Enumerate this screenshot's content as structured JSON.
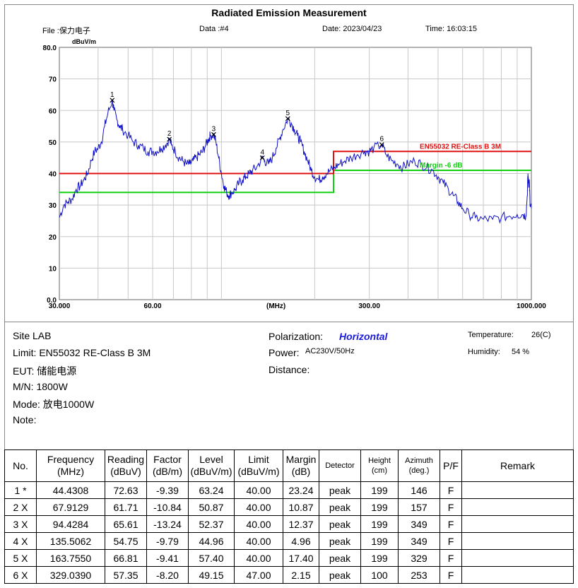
{
  "header": {
    "title": "Radiated Emission Measurement",
    "file": "File :保力电子",
    "data": "Data :#4",
    "date": "Date: 2023/04/23",
    "time": "Time: 16:03:15"
  },
  "chart_data": {
    "type": "line",
    "ylabel": "dBuV/m",
    "xunit": "(MHz)",
    "xscale": "log",
    "xlim": [
      30,
      1000
    ],
    "ylim": [
      0,
      80
    ],
    "xtick_labels": [
      {
        "value": 30,
        "label": "30.000"
      },
      {
        "value": 60,
        "label": "60.00"
      },
      {
        "value": 150,
        "label": "(MHz)"
      },
      {
        "value": 300,
        "label": "300.00"
      },
      {
        "value": 1000,
        "label": "1000.000"
      }
    ],
    "ytick_labels": [
      {
        "value": 80,
        "label": "80.0"
      },
      {
        "value": 70,
        "label": "70"
      },
      {
        "value": 60,
        "label": "60"
      },
      {
        "value": 50,
        "label": "50"
      },
      {
        "value": 40,
        "label": "40"
      },
      {
        "value": 30,
        "label": "30"
      },
      {
        "value": 20,
        "label": "20"
      },
      {
        "value": 10,
        "label": "10"
      },
      {
        "value": 0,
        "label": "0.0"
      }
    ],
    "limit_line": {
      "label": "EN55032 RE-Class B 3M",
      "color": "#e01010",
      "points": [
        [
          30,
          40
        ],
        [
          230,
          40
        ],
        [
          230,
          47
        ],
        [
          1000,
          47
        ]
      ]
    },
    "margin_line": {
      "label": "Margin -6 dB",
      "color": "#10d010",
      "points": [
        [
          30,
          34
        ],
        [
          230,
          34
        ],
        [
          230,
          41
        ],
        [
          1000,
          41
        ]
      ]
    },
    "trace": {
      "color": "#1010c8",
      "points": [
        [
          30,
          26
        ],
        [
          31,
          30
        ],
        [
          32,
          31
        ],
        [
          33,
          32
        ],
        [
          34,
          35
        ],
        [
          35,
          36
        ],
        [
          36,
          38
        ],
        [
          37,
          40
        ],
        [
          38,
          44
        ],
        [
          39,
          47
        ],
        [
          40,
          48
        ],
        [
          41,
          50
        ],
        [
          42,
          55
        ],
        [
          43,
          59
        ],
        [
          44.43,
          63.24
        ],
        [
          45,
          60
        ],
        [
          46,
          57
        ],
        [
          47,
          55
        ],
        [
          48,
          54
        ],
        [
          50,
          52
        ],
        [
          52,
          50
        ],
        [
          54,
          49
        ],
        [
          56,
          48
        ],
        [
          58,
          47
        ],
        [
          60,
          47
        ],
        [
          62,
          47
        ],
        [
          64,
          48
        ],
        [
          66,
          49
        ],
        [
          67.91,
          50.87
        ],
        [
          69,
          49
        ],
        [
          71,
          47
        ],
        [
          73,
          45
        ],
        [
          75,
          44
        ],
        [
          77,
          43
        ],
        [
          79,
          43
        ],
        [
          81,
          44
        ],
        [
          83,
          45
        ],
        [
          85,
          46
        ],
        [
          87,
          47
        ],
        [
          89,
          49
        ],
        [
          91,
          51
        ],
        [
          92,
          52
        ],
        [
          94.43,
          52.37
        ],
        [
          96,
          50
        ],
        [
          98,
          45
        ],
        [
          100,
          40
        ],
        [
          102,
          36
        ],
        [
          104,
          34
        ],
        [
          106,
          33
        ],
        [
          108,
          34
        ],
        [
          111,
          35
        ],
        [
          114,
          37
        ],
        [
          117,
          38
        ],
        [
          120,
          39
        ],
        [
          123,
          40
        ],
        [
          126,
          41
        ],
        [
          130,
          42
        ],
        [
          135.51,
          44.96
        ],
        [
          138,
          44
        ],
        [
          142,
          43
        ],
        [
          146,
          45
        ],
        [
          150,
          48
        ],
        [
          154,
          51
        ],
        [
          158,
          54
        ],
        [
          163.76,
          57.4
        ],
        [
          168,
          56
        ],
        [
          172,
          54
        ],
        [
          176,
          52
        ],
        [
          180,
          50
        ],
        [
          185,
          47
        ],
        [
          190,
          44
        ],
        [
          195,
          41
        ],
        [
          200,
          39
        ],
        [
          206,
          38
        ],
        [
          212,
          39
        ],
        [
          218,
          40
        ],
        [
          225,
          41
        ],
        [
          232,
          42
        ],
        [
          240,
          43
        ],
        [
          250,
          44
        ],
        [
          262,
          45
        ],
        [
          275,
          46
        ],
        [
          290,
          47
        ],
        [
          300,
          47
        ],
        [
          310,
          48
        ],
        [
          329.04,
          49.15
        ],
        [
          340,
          46
        ],
        [
          355,
          44
        ],
        [
          370,
          43
        ],
        [
          385,
          42
        ],
        [
          400,
          43
        ],
        [
          420,
          44
        ],
        [
          440,
          43
        ],
        [
          460,
          42
        ],
        [
          480,
          41
        ],
        [
          500,
          39
        ],
        [
          520,
          37
        ],
        [
          540,
          35
        ],
        [
          560,
          33
        ],
        [
          580,
          31
        ],
        [
          600,
          29
        ],
        [
          630,
          27
        ],
        [
          660,
          26
        ],
        [
          700,
          25.5
        ],
        [
          750,
          25.5
        ],
        [
          800,
          26
        ],
        [
          850,
          26.5
        ],
        [
          900,
          27
        ],
        [
          940,
          27
        ],
        [
          960,
          26.5
        ],
        [
          970,
          33
        ],
        [
          975,
          40
        ],
        [
          980,
          36
        ],
        [
          985,
          38
        ],
        [
          990,
          30
        ],
        [
          1000,
          29
        ]
      ]
    },
    "markers": [
      {
        "label": "1",
        "x": 44.4308,
        "y": 63.24
      },
      {
        "label": "2",
        "x": 67.9129,
        "y": 50.87
      },
      {
        "label": "3",
        "x": 94.4284,
        "y": 52.37
      },
      {
        "label": "4",
        "x": 135.5062,
        "y": 44.96
      },
      {
        "label": "5",
        "x": 163.755,
        "y": 57.4
      },
      {
        "label": "6",
        "x": 329.039,
        "y": 49.15
      }
    ]
  },
  "info": {
    "site": "Site  LAB",
    "limit": "Limit:  EN55032 RE-Class B 3M",
    "eut": "EUT:  储能电源",
    "mn": "M/N:  1800W",
    "mode": "Mode:  放电1000W",
    "note": "Note:",
    "polarization_label": "Polarization:",
    "polarization_value": "Horizontal",
    "power_label": "Power:",
    "power_value": "AC230V/50Hz",
    "distance_label": "Distance:",
    "temperature_label": "Temperature:",
    "temperature_value": "26(C)",
    "humidity_label": "Humidity:",
    "humidity_value": "54 %"
  },
  "table": {
    "headers": [
      [
        "No.",
        ""
      ],
      [
        "Frequency",
        "(MHz)"
      ],
      [
        "Reading",
        "(dBuV)"
      ],
      [
        "Factor",
        "(dB/m)"
      ],
      [
        "Level",
        "(dBuV/m)"
      ],
      [
        "Limit",
        "(dBuV/m)"
      ],
      [
        "Margin",
        "(dB)"
      ],
      [
        "Detector",
        ""
      ],
      [
        "Height",
        "(cm)"
      ],
      [
        "Azimuth",
        "(deg.)"
      ],
      [
        "P/F",
        ""
      ],
      [
        "Remark",
        ""
      ]
    ],
    "rows": [
      [
        "1 *",
        "44.4308",
        "72.63",
        "-9.39",
        "63.24",
        "40.00",
        "23.24",
        "peak",
        "199",
        "146",
        "F",
        ""
      ],
      [
        "2 X",
        "67.9129",
        "61.71",
        "-10.84",
        "50.87",
        "40.00",
        "10.87",
        "peak",
        "199",
        "157",
        "F",
        ""
      ],
      [
        "3 X",
        "94.4284",
        "65.61",
        "-13.24",
        "52.37",
        "40.00",
        "12.37",
        "peak",
        "199",
        "349",
        "F",
        ""
      ],
      [
        "4 X",
        "135.5062",
        "54.75",
        "-9.79",
        "44.96",
        "40.00",
        "4.96",
        "peak",
        "199",
        "349",
        "F",
        ""
      ],
      [
        "5 X",
        "163.7550",
        "66.81",
        "-9.41",
        "57.40",
        "40.00",
        "17.40",
        "peak",
        "199",
        "329",
        "F",
        ""
      ],
      [
        "6 X",
        "329.0390",
        "57.35",
        "-8.20",
        "49.15",
        "47.00",
        "2.15",
        "peak",
        "100",
        "253",
        "F",
        ""
      ]
    ]
  }
}
